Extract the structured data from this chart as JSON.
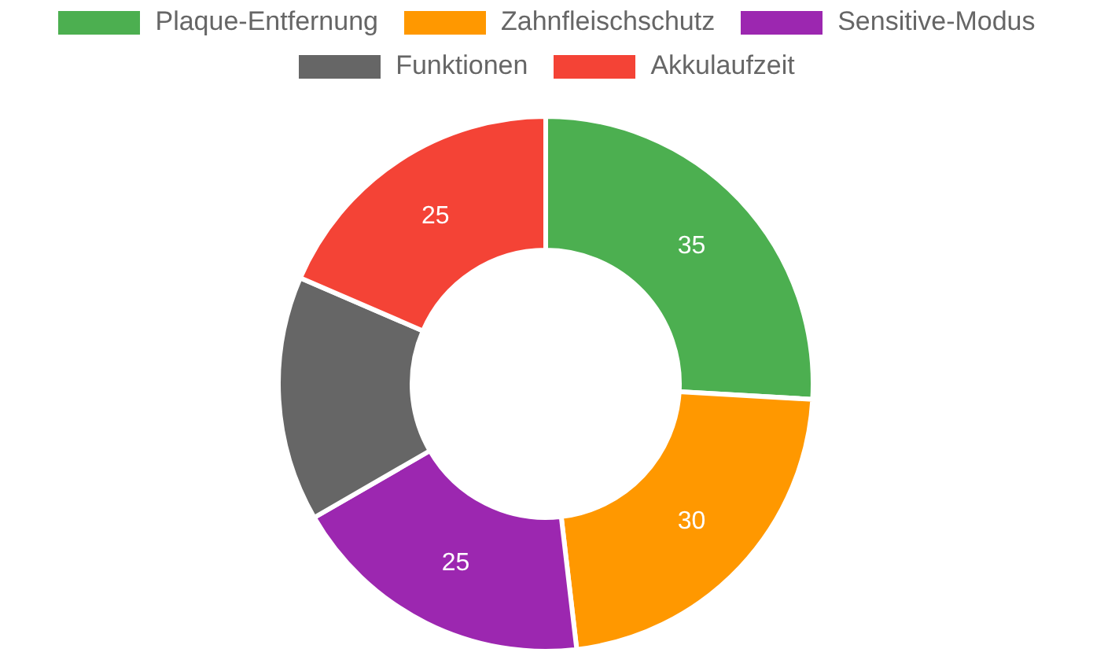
{
  "chart_data": {
    "type": "donut",
    "categories": [
      "Plaque-Entfernung",
      "Zahnfleischschutz",
      "Sensitive-Modus",
      "Funktionen",
      "Akkulaufzeit"
    ],
    "values": [
      35,
      30,
      25,
      20,
      25
    ],
    "colors": [
      "#4caf50",
      "#ff9800",
      "#9c27b0",
      "#666666",
      "#f44336"
    ],
    "value_labels": [
      "35",
      "30",
      "25",
      null,
      "25"
    ],
    "legend": "top"
  }
}
